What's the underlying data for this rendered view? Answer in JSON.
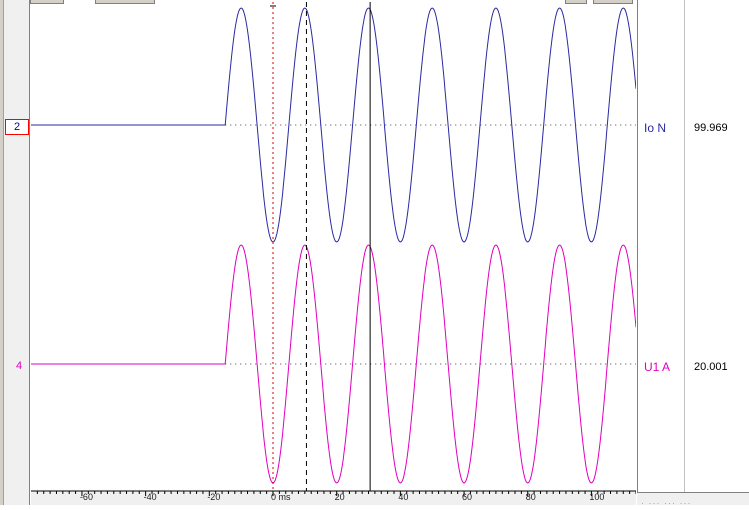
{
  "channels": [
    {
      "number": "2",
      "name": "Io N",
      "value": "99.969",
      "color": "#2a2aa0"
    },
    {
      "number": "4",
      "name": "U1 A",
      "value": "20.001",
      "color": "#e000c0"
    }
  ],
  "chart_data": {
    "type": "line",
    "xlabel": "",
    "xlim": [
      -76,
      114
    ],
    "x_ticks": [
      -60,
      -40,
      -20,
      0,
      20,
      40,
      60,
      80,
      100
    ],
    "x_tick_labels": [
      "-60",
      "-40",
      "-20",
      "0 ms",
      "20",
      "40",
      "60",
      "80",
      "100"
    ],
    "series": [
      {
        "name": "Io N",
        "onset_ms": -15,
        "period_ms": 20,
        "color": "#2a2aa0"
      },
      {
        "name": "U1 A",
        "onset_ms": -15,
        "period_ms": 20,
        "color": "#e000c0"
      }
    ],
    "markers": [
      {
        "x": 0,
        "style": "dotted",
        "color": "#e00000"
      },
      {
        "x": 10.5,
        "style": "dashed",
        "color": "#000000"
      },
      {
        "x": 30.5,
        "style": "solid",
        "color": "#000000"
      }
    ],
    "grid": false
  },
  "bottom_status": "·  ··· ··· ···"
}
